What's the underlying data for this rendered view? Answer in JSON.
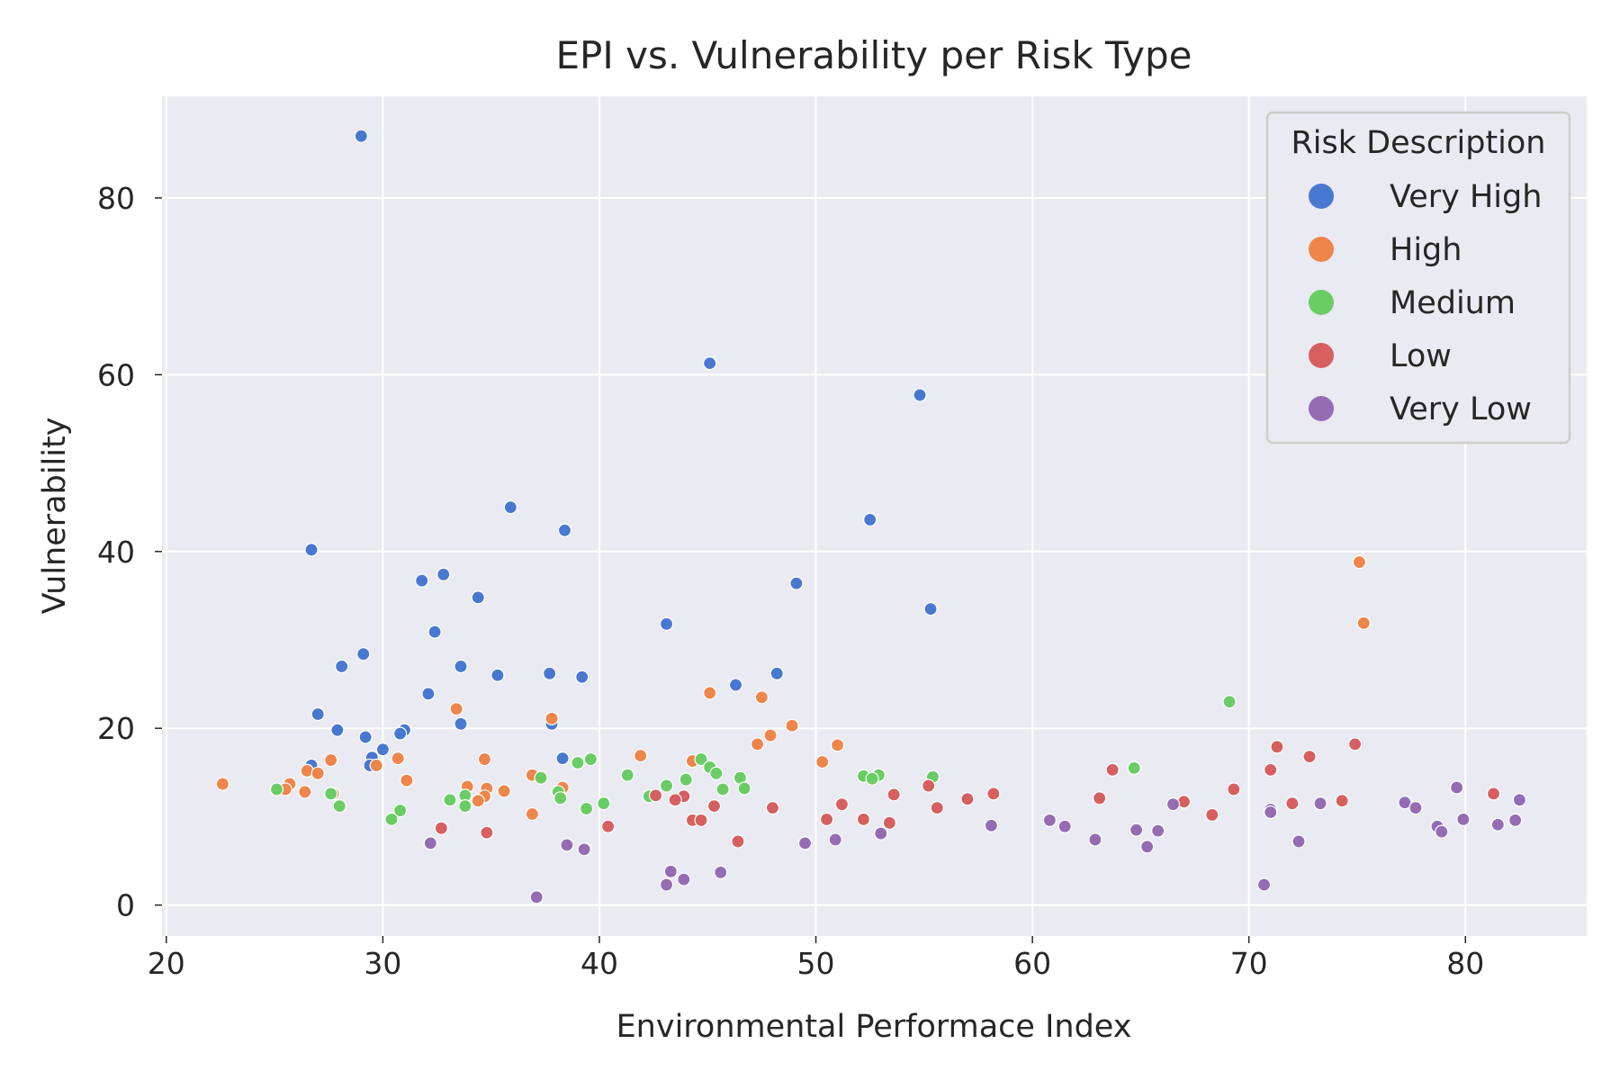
{
  "chart_data": {
    "type": "scatter",
    "title": "EPI vs. Vulnerability per Risk Type",
    "xlabel": "Environmental Performace Index",
    "ylabel": "Vulnerability",
    "xlim": [
      19.8,
      85.6
    ],
    "ylim": [
      -3.5,
      91.5
    ],
    "xticks": [
      20,
      30,
      40,
      50,
      60,
      70,
      80
    ],
    "yticks": [
      0,
      20,
      40,
      60,
      80
    ],
    "grid": true,
    "legend": {
      "title": "Risk Description",
      "position": "top-right"
    },
    "series": [
      {
        "name": "Very High",
        "color": "#4878d0",
        "points": [
          [
            29.0,
            87.0
          ],
          [
            45.1,
            61.3
          ],
          [
            54.8,
            57.7
          ],
          [
            35.9,
            45.0
          ],
          [
            52.5,
            43.6
          ],
          [
            38.4,
            42.4
          ],
          [
            26.7,
            40.2
          ],
          [
            49.1,
            36.4
          ],
          [
            31.8,
            36.7
          ],
          [
            32.8,
            37.4
          ],
          [
            34.4,
            34.8
          ],
          [
            55.3,
            33.5
          ],
          [
            43.1,
            31.8
          ],
          [
            32.4,
            30.9
          ],
          [
            29.1,
            28.4
          ],
          [
            28.1,
            27.0
          ],
          [
            33.6,
            27.0
          ],
          [
            37.7,
            26.2
          ],
          [
            48.2,
            26.2
          ],
          [
            35.3,
            26.0
          ],
          [
            39.2,
            25.8
          ],
          [
            46.3,
            24.9
          ],
          [
            32.1,
            23.9
          ],
          [
            27.0,
            21.6
          ],
          [
            33.6,
            20.5
          ],
          [
            37.8,
            20.5
          ],
          [
            27.9,
            19.8
          ],
          [
            31.0,
            19.8
          ],
          [
            30.8,
            19.4
          ],
          [
            29.2,
            19.0
          ],
          [
            30.0,
            17.6
          ],
          [
            29.5,
            16.7
          ],
          [
            38.3,
            16.6
          ],
          [
            26.7,
            15.8
          ],
          [
            29.4,
            15.8
          ]
        ]
      },
      {
        "name": "High",
        "color": "#ee854a",
        "points": [
          [
            75.1,
            38.8
          ],
          [
            75.3,
            31.9
          ],
          [
            45.1,
            24.0
          ],
          [
            47.5,
            23.5
          ],
          [
            33.4,
            22.2
          ],
          [
            37.8,
            21.1
          ],
          [
            48.9,
            20.3
          ],
          [
            47.9,
            19.2
          ],
          [
            47.3,
            18.2
          ],
          [
            51.0,
            18.1
          ],
          [
            41.9,
            16.9
          ],
          [
            30.7,
            16.6
          ],
          [
            34.7,
            16.5
          ],
          [
            27.6,
            16.4
          ],
          [
            44.3,
            16.3
          ],
          [
            50.3,
            16.2
          ],
          [
            29.7,
            15.8
          ],
          [
            26.5,
            15.2
          ],
          [
            27.0,
            14.9
          ],
          [
            36.9,
            14.7
          ],
          [
            31.1,
            14.1
          ],
          [
            22.6,
            13.7
          ],
          [
            25.7,
            13.7
          ],
          [
            33.9,
            13.4
          ],
          [
            38.3,
            13.3
          ],
          [
            34.8,
            13.2
          ],
          [
            25.5,
            13.1
          ],
          [
            26.4,
            12.8
          ],
          [
            35.6,
            12.9
          ],
          [
            27.7,
            12.6
          ],
          [
            34.7,
            12.3
          ],
          [
            34.4,
            11.8
          ],
          [
            36.9,
            10.3
          ]
        ]
      },
      {
        "name": "Medium",
        "color": "#6acc64",
        "points": [
          [
            69.1,
            23.0
          ],
          [
            44.7,
            16.5
          ],
          [
            39.6,
            16.5
          ],
          [
            39.0,
            16.1
          ],
          [
            45.1,
            15.6
          ],
          [
            64.7,
            15.5
          ],
          [
            45.4,
            14.9
          ],
          [
            41.3,
            14.7
          ],
          [
            52.9,
            14.7
          ],
          [
            52.2,
            14.6
          ],
          [
            55.4,
            14.5
          ],
          [
            37.3,
            14.4
          ],
          [
            46.5,
            14.4
          ],
          [
            52.6,
            14.3
          ],
          [
            44.0,
            14.2
          ],
          [
            43.1,
            13.5
          ],
          [
            25.1,
            13.1
          ],
          [
            45.7,
            13.1
          ],
          [
            46.7,
            13.2
          ],
          [
            38.1,
            12.8
          ],
          [
            27.6,
            12.6
          ],
          [
            33.8,
            12.4
          ],
          [
            42.3,
            12.3
          ],
          [
            38.2,
            12.1
          ],
          [
            33.1,
            11.9
          ],
          [
            40.2,
            11.5
          ],
          [
            28.0,
            11.2
          ],
          [
            33.8,
            11.2
          ],
          [
            39.4,
            10.9
          ],
          [
            30.8,
            10.7
          ],
          [
            30.4,
            9.7
          ]
        ]
      },
      {
        "name": "Low",
        "color": "#d65f5f",
        "points": [
          [
            74.9,
            18.2
          ],
          [
            71.3,
            17.9
          ],
          [
            72.8,
            16.8
          ],
          [
            63.7,
            15.3
          ],
          [
            71.0,
            15.3
          ],
          [
            55.2,
            13.5
          ],
          [
            69.3,
            13.1
          ],
          [
            81.3,
            12.6
          ],
          [
            58.2,
            12.6
          ],
          [
            53.6,
            12.5
          ],
          [
            42.6,
            12.4
          ],
          [
            43.9,
            12.3
          ],
          [
            63.1,
            12.1
          ],
          [
            57.0,
            12.0
          ],
          [
            43.5,
            11.9
          ],
          [
            74.3,
            11.8
          ],
          [
            67.0,
            11.7
          ],
          [
            72.0,
            11.5
          ],
          [
            51.2,
            11.4
          ],
          [
            45.3,
            11.2
          ],
          [
            55.6,
            11.0
          ],
          [
            48.0,
            11.0
          ],
          [
            68.3,
            10.2
          ],
          [
            50.5,
            9.7
          ],
          [
            52.2,
            9.7
          ],
          [
            44.3,
            9.6
          ],
          [
            44.7,
            9.6
          ],
          [
            53.4,
            9.3
          ],
          [
            40.4,
            8.9
          ],
          [
            32.7,
            8.7
          ],
          [
            34.8,
            8.2
          ],
          [
            46.4,
            7.2
          ]
        ]
      },
      {
        "name": "Very Low",
        "color": "#956cb4",
        "points": [
          [
            79.6,
            13.3
          ],
          [
            82.5,
            11.9
          ],
          [
            77.2,
            11.6
          ],
          [
            73.3,
            11.5
          ],
          [
            66.5,
            11.4
          ],
          [
            77.7,
            11.0
          ],
          [
            71.0,
            10.8
          ],
          [
            71.0,
            10.5
          ],
          [
            79.9,
            9.7
          ],
          [
            60.8,
            9.6
          ],
          [
            82.3,
            9.6
          ],
          [
            81.5,
            9.1
          ],
          [
            58.1,
            9.0
          ],
          [
            61.5,
            8.9
          ],
          [
            78.7,
            8.9
          ],
          [
            78.9,
            8.3
          ],
          [
            64.8,
            8.5
          ],
          [
            65.8,
            8.4
          ],
          [
            53.0,
            8.1
          ],
          [
            50.9,
            7.4
          ],
          [
            62.9,
            7.4
          ],
          [
            72.3,
            7.2
          ],
          [
            49.5,
            7.0
          ],
          [
            32.2,
            7.0
          ],
          [
            38.5,
            6.8
          ],
          [
            65.3,
            6.6
          ],
          [
            39.3,
            6.3
          ],
          [
            43.3,
            3.8
          ],
          [
            45.6,
            3.7
          ],
          [
            43.9,
            2.9
          ],
          [
            43.1,
            2.3
          ],
          [
            70.7,
            2.3
          ],
          [
            37.1,
            0.9
          ]
        ]
      }
    ]
  }
}
